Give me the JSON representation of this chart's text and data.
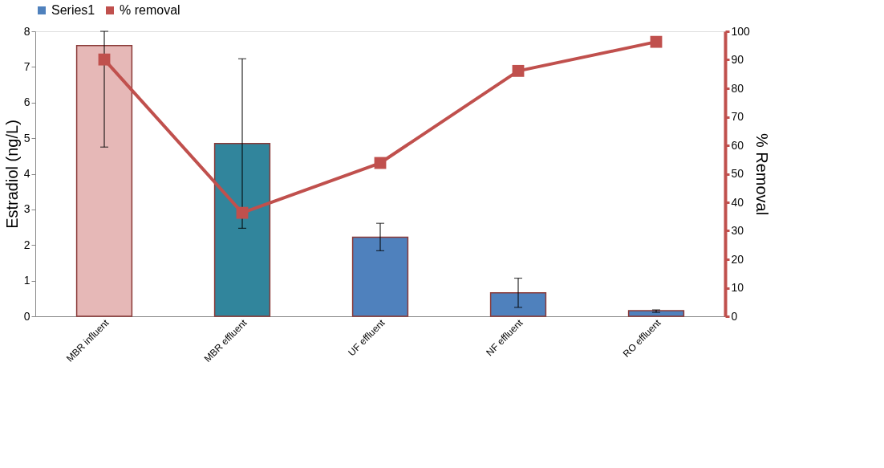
{
  "chart_data": {
    "type": "bar",
    "ylabel": "Estradiol (ng/L)",
    "y2label": "% Removal",
    "categories": [
      "MBR influent",
      "MBR effluent",
      "UF effluent",
      "NF effluent",
      "RO effluent"
    ],
    "series": [
      {
        "name": "Series1",
        "color": "#4f81bd",
        "colors": [
          "#e6b8b7",
          "#31859c",
          "#4f81bd",
          "#4f81bd",
          "#4f81bd"
        ],
        "values": [
          7.6,
          4.85,
          2.22,
          0.66,
          0.16
        ],
        "errors": [
          [
            4.75,
            8
          ],
          [
            2.47,
            7.23
          ],
          [
            1.84,
            2.61
          ],
          [
            0.25,
            1.07
          ],
          [
            0.11,
            0.18
          ]
        ]
      },
      {
        "name": "% removal",
        "type": "line",
        "axis": "y2",
        "color": "#c0504d",
        "marker": "square",
        "values": [
          90.1,
          36.3,
          53.8,
          86.1,
          96.3
        ]
      }
    ],
    "ylim": [
      0,
      8
    ],
    "yticks": [
      0,
      1,
      2,
      3,
      4,
      5,
      6,
      7,
      8
    ],
    "y2lim": [
      0,
      100
    ],
    "y2ticks": [
      0,
      10,
      20,
      30,
      40,
      50,
      60,
      70,
      80,
      90,
      100
    ],
    "legend": "top",
    "grid": false
  }
}
